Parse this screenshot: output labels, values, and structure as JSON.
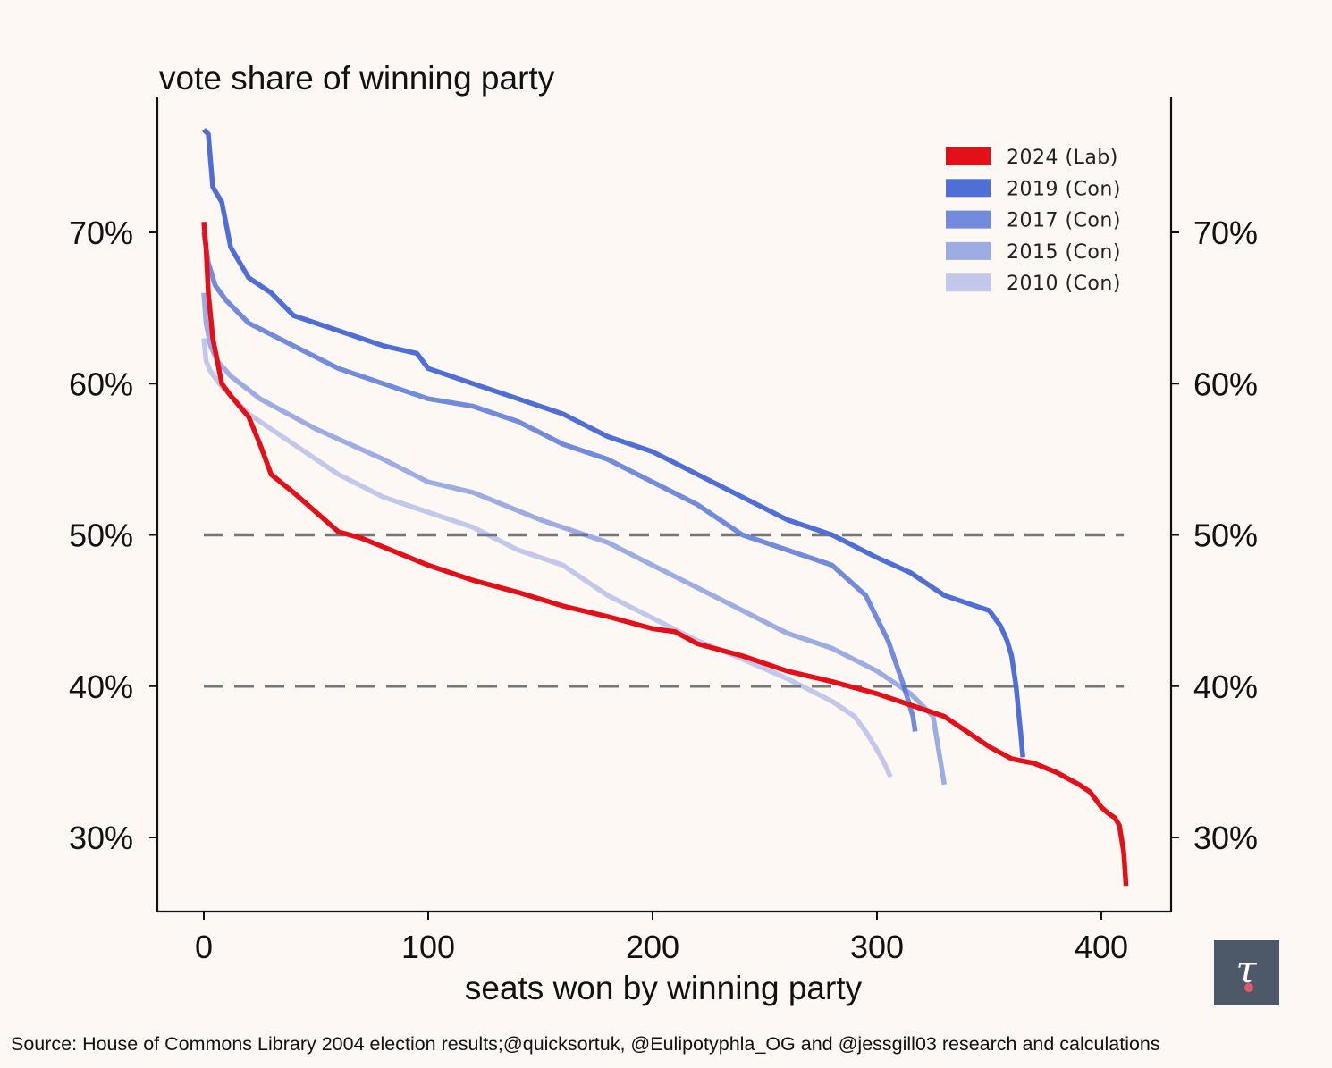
{
  "chart_data": {
    "type": "line",
    "title": "vote share of winning party",
    "xlabel": "seats won by winning party",
    "ylabel": "vote share of winning party",
    "xlim": [
      -20,
      430
    ],
    "ylim": [
      25,
      79
    ],
    "xticks": [
      0,
      100,
      200,
      300,
      400
    ],
    "xtick_labels": [
      "0",
      "100",
      "200",
      "300",
      "400"
    ],
    "yticks": [
      30,
      40,
      50,
      60,
      70
    ],
    "ytick_labels": [
      "30%",
      "40%",
      "50%",
      "60%",
      "70%"
    ],
    "reference_lines": [
      {
        "y": 50,
        "x_range": [
          0,
          410
        ],
        "style": "dashed",
        "color": "#777777"
      },
      {
        "y": 40,
        "x_range": [
          0,
          410
        ],
        "style": "dashed",
        "color": "#777777"
      }
    ],
    "legend_position": "top-right",
    "series": [
      {
        "name": "2010 (Con)",
        "color": "#4f6fd6",
        "opacity": 0.35,
        "x": [
          0,
          1,
          3,
          8,
          20,
          40,
          60,
          80,
          100,
          120,
          140,
          160,
          180,
          200,
          220,
          240,
          260,
          280,
          290,
          295,
          300,
          303,
          306
        ],
        "y": [
          63.0,
          61.5,
          60.8,
          59.8,
          58.0,
          56.0,
          54.0,
          52.5,
          51.5,
          50.5,
          49.0,
          48.0,
          46.0,
          44.5,
          43.0,
          41.8,
          40.5,
          39.0,
          38.0,
          37.0,
          35.8,
          35.0,
          34.0
        ]
      },
      {
        "name": "2015 (Con)",
        "color": "#4f6fd6",
        "opacity": 0.55,
        "x": [
          0,
          1,
          3,
          6,
          12,
          25,
          50,
          80,
          100,
          120,
          150,
          180,
          200,
          220,
          240,
          260,
          280,
          300,
          315,
          325,
          330
        ],
        "y": [
          66.0,
          64.0,
          62.5,
          61.5,
          60.5,
          59.0,
          57.0,
          55.0,
          53.5,
          52.8,
          51.0,
          49.5,
          48.0,
          46.5,
          45.0,
          43.5,
          42.5,
          41.0,
          39.5,
          38.0,
          33.5
        ]
      },
      {
        "name": "2017 (Con)",
        "color": "#4f6fd6",
        "opacity": 0.8,
        "x": [
          0,
          2,
          5,
          10,
          20,
          40,
          60,
          80,
          100,
          120,
          140,
          160,
          180,
          200,
          220,
          240,
          260,
          280,
          295,
          305,
          312,
          316,
          317
        ],
        "y": [
          70.0,
          68.0,
          66.5,
          65.5,
          64.0,
          62.5,
          61.0,
          60.0,
          59.0,
          58.5,
          57.5,
          56.0,
          55.0,
          53.5,
          52.0,
          50.0,
          49.0,
          48.0,
          46.0,
          43.0,
          40.0,
          38.0,
          37.0
        ]
      },
      {
        "name": "2019 (Con)",
        "color": "#4f6fd6",
        "opacity": 1.0,
        "x": [
          0,
          2,
          4,
          8,
          12,
          20,
          30,
          40,
          60,
          80,
          95,
          100,
          120,
          140,
          160,
          180,
          200,
          220,
          240,
          260,
          280,
          300,
          315,
          330,
          340,
          350,
          355,
          358,
          360,
          362,
          364,
          365
        ],
        "y": [
          76.8,
          76.5,
          73.0,
          72.0,
          69.0,
          67.0,
          66.0,
          64.5,
          63.5,
          62.5,
          62.0,
          61.0,
          60.0,
          59.0,
          58.0,
          56.5,
          55.5,
          54.0,
          52.5,
          51.0,
          50.0,
          48.5,
          47.5,
          46.0,
          45.5,
          45.0,
          44.0,
          43.0,
          42.0,
          40.0,
          37.0,
          35.3
        ]
      },
      {
        "name": "2024 (Lab)",
        "color": "#e3101a",
        "opacity": 1.0,
        "x": [
          0,
          1,
          2,
          4,
          6,
          8,
          12,
          20,
          25,
          30,
          40,
          50,
          60,
          70,
          80,
          100,
          120,
          140,
          160,
          180,
          200,
          210,
          220,
          240,
          260,
          280,
          300,
          320,
          330,
          340,
          350,
          360,
          370,
          380,
          390,
          395,
          400,
          403,
          406,
          408,
          410,
          411
        ],
        "y": [
          70.7,
          69.0,
          66.0,
          63.0,
          61.5,
          60.0,
          59.2,
          57.8,
          56.0,
          54.0,
          52.8,
          51.5,
          50.2,
          49.8,
          49.2,
          48.0,
          47.0,
          46.2,
          45.3,
          44.6,
          43.8,
          43.6,
          42.8,
          42.0,
          41.0,
          40.3,
          39.5,
          38.5,
          38.0,
          37.0,
          36.0,
          35.2,
          34.9,
          34.3,
          33.5,
          33.0,
          32.0,
          31.6,
          31.3,
          30.8,
          29.0,
          26.8
        ]
      }
    ],
    "legend": [
      {
        "label": "2024 (Lab)",
        "color": "#e3101a",
        "opacity": 1.0
      },
      {
        "label": "2019 (Con)",
        "color": "#4f6fd6",
        "opacity": 1.0
      },
      {
        "label": "2017 (Con)",
        "color": "#4f6fd6",
        "opacity": 0.8
      },
      {
        "label": "2015 (Con)",
        "color": "#4f6fd6",
        "opacity": 0.55
      },
      {
        "label": "2010 (Con)",
        "color": "#4f6fd6",
        "opacity": 0.35
      }
    ]
  },
  "source_text": "Source: House of Commons Library 2004 election results;@quicksortuk, @Eulipotyphla_OG and @jessgill03 research and calculations",
  "logo_glyph": "τ"
}
